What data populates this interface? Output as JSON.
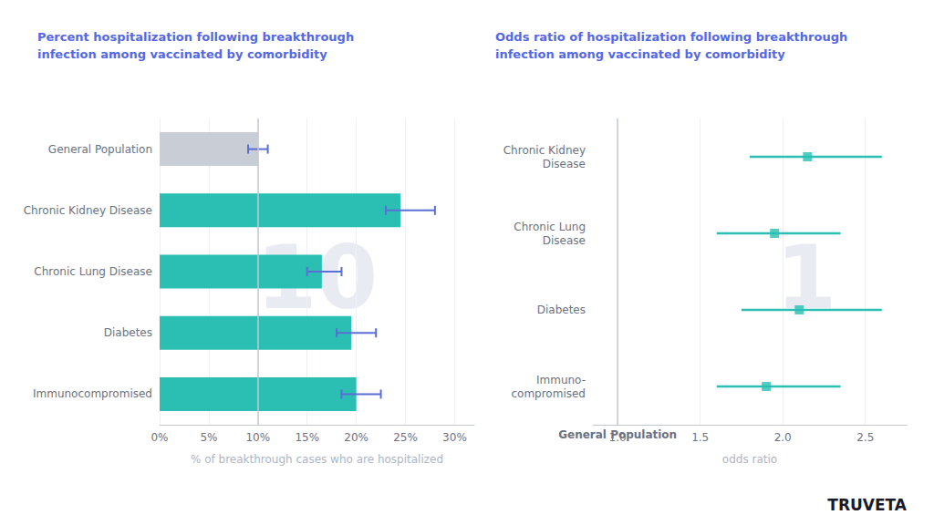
{
  "chart_data": [
    {
      "type": "bar",
      "orientation": "horizontal",
      "title": "Percent hospitalization following breakthrough\ninfection among vaccinated by comorbidity",
      "categories": [
        "General Population",
        "Chronic Kidney Disease",
        "Chronic Lung Disease",
        "Diabetes",
        "Immunocompromised"
      ],
      "values": [
        10.0,
        24.5,
        16.5,
        19.5,
        20.0
      ],
      "errors_low": [
        1.0,
        1.5,
        1.5,
        1.5,
        1.5
      ],
      "errors_high": [
        1.0,
        3.5,
        2.0,
        2.5,
        2.5
      ],
      "colors": [
        "#c8cdd6",
        "#2bbfb3",
        "#2bbfb3",
        "#2bbfb3",
        "#2bbfb3"
      ],
      "xlim": [
        0,
        32
      ],
      "xticks": [
        {
          "value": 0,
          "label": "0%"
        },
        {
          "value": 5,
          "label": "5%"
        },
        {
          "value": 10,
          "label": "10%"
        },
        {
          "value": 15,
          "label": "15%"
        },
        {
          "value": 20,
          "label": "20%"
        },
        {
          "value": 25,
          "label": "25%"
        },
        {
          "value": 30,
          "label": "30%"
        }
      ],
      "xlabel": "% of breakthrough cases who are hospitalized",
      "ref_line": 10.0,
      "watermark": "10",
      "grid": true
    },
    {
      "type": "scatter",
      "orientation": "horizontal",
      "title": "Odds ratio of hospitalization following breakthrough\ninfection among vaccinated by comorbidity",
      "categories": [
        "Chronic Kidney\nDisease",
        "Chronic Lung\nDisease",
        "Diabetes",
        "Immuno-\ncompromised"
      ],
      "values": [
        2.15,
        1.95,
        2.1,
        1.9
      ],
      "lo": [
        1.8,
        1.6,
        1.75,
        1.6
      ],
      "hi": [
        2.6,
        2.35,
        2.6,
        2.35
      ],
      "color": "#2bbfb3",
      "marker": "square",
      "xlim": [
        0.85,
        2.75
      ],
      "xticks": [
        {
          "value": 1.0,
          "label": "1.0"
        },
        1.5,
        {
          "value": 2.0,
          "label": "2.0"
        },
        2.5
      ],
      "xlabel": "odds ratio",
      "ref_line": 1.0,
      "ref_label": "General Population",
      "watermark": "1",
      "grid": true,
      "annotations": [
        "TRUVETA"
      ]
    }
  ]
}
